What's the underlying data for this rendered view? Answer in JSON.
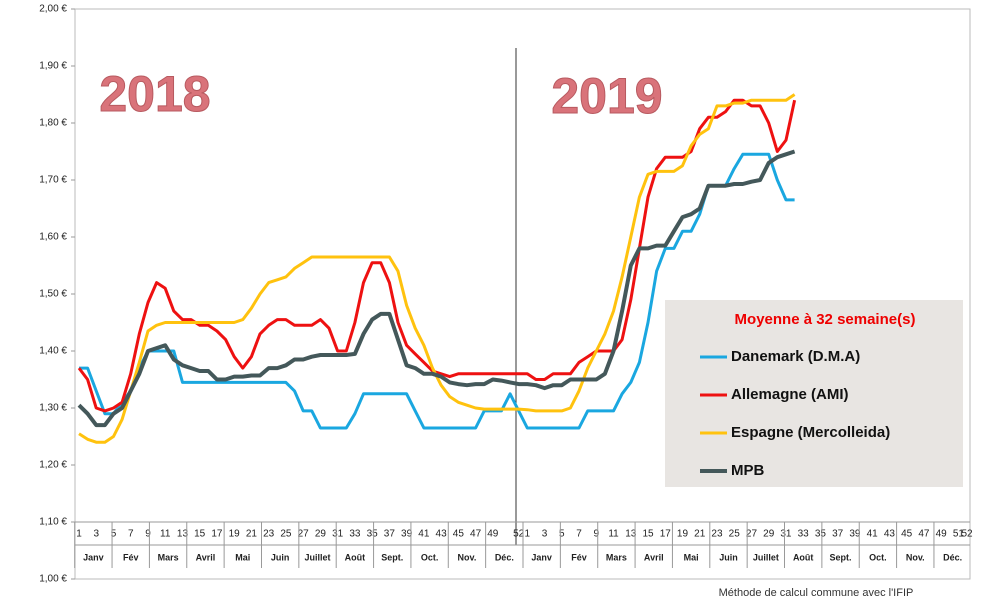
{
  "chart_data": {
    "type": "line",
    "legend_title": "Moyenne à  32 semaine(s)",
    "annotations": [
      "2018",
      "2019"
    ],
    "note": "Méthode de calcul commune avec l'IFIP",
    "legend": "right",
    "grid": false,
    "ylim": [
      1.0,
      2.0
    ],
    "yticks": [
      {
        "value": 1.0,
        "label": "1,00 €"
      },
      {
        "value": 1.1,
        "label": "1,10 €"
      },
      {
        "value": 1.2,
        "label": "1,20 €"
      },
      {
        "value": 1.3,
        "label": "1,30 €"
      },
      {
        "value": 1.4,
        "label": "1,40 €"
      },
      {
        "value": 1.5,
        "label": "1,50 €"
      },
      {
        "value": 1.6,
        "label": "1,60 €"
      },
      {
        "value": 1.7,
        "label": "1,70 €"
      },
      {
        "value": 1.8,
        "label": "1,80 €"
      },
      {
        "value": 1.9,
        "label": "1,90 €"
      },
      {
        "value": 2.0,
        "label": "2,00 €"
      }
    ],
    "months": [
      "Janv",
      "Fév",
      "Mars",
      "Avril",
      "Mai",
      "Juin",
      "Juillet",
      "Août",
      "Sept.",
      "Oct.",
      "Nov.",
      "Déc.",
      "Janv",
      "Fév",
      "Mars",
      "Avril",
      "Mai",
      "Juin",
      "Juillet",
      "Août",
      "Sept.",
      "Oct.",
      "Nov.",
      "Déc."
    ],
    "categories": [
      "1",
      null,
      "3",
      null,
      "5",
      null,
      "7",
      null,
      "9",
      null,
      "11",
      null,
      "13",
      null,
      "15",
      null,
      "17",
      null,
      "19",
      null,
      "21",
      null,
      "23",
      null,
      "25",
      null,
      "27",
      null,
      "29",
      null,
      "31",
      null,
      "33",
      null,
      "35",
      null,
      "37",
      null,
      "39",
      null,
      "41",
      null,
      "43",
      null,
      "45",
      null,
      "47",
      null,
      "49",
      null,
      null,
      "52",
      "1",
      null,
      "3",
      null,
      "5",
      null,
      "7",
      null,
      "9",
      null,
      "11",
      null,
      "13",
      null,
      "15",
      null,
      "17",
      null,
      "19",
      null,
      "21",
      null,
      "23",
      null,
      "25",
      null,
      "27",
      null,
      "29",
      null,
      "31",
      null,
      "33",
      null,
      "35",
      null,
      "37",
      null,
      "39",
      null,
      "41",
      null,
      "43",
      null,
      "45",
      null,
      "47",
      null,
      "49",
      null,
      "51",
      "52"
    ],
    "series": [
      {
        "name": "Danemark (D.M.A)",
        "color": "#1aa7e0",
        "values": [
          1.37,
          1.37,
          1.33,
          1.29,
          1.29,
          1.31,
          1.33,
          1.37,
          1.4,
          1.4,
          1.4,
          1.4,
          1.345,
          1.345,
          1.345,
          1.345,
          1.345,
          1.345,
          1.345,
          1.345,
          1.345,
          1.345,
          1.345,
          1.345,
          1.345,
          1.33,
          1.295,
          1.295,
          1.265,
          1.265,
          1.265,
          1.265,
          1.29,
          1.325,
          1.325,
          1.325,
          1.325,
          1.325,
          1.325,
          1.295,
          1.265,
          1.265,
          1.265,
          1.265,
          1.265,
          1.265,
          1.265,
          1.295,
          1.295,
          1.295,
          1.325,
          1.295,
          1.265,
          1.265,
          1.265,
          1.265,
          1.265,
          1.265,
          1.265,
          1.295,
          1.295,
          1.295,
          1.295,
          1.325,
          1.345,
          1.38,
          1.45,
          1.54,
          1.58,
          1.58,
          1.61,
          1.61,
          1.64,
          1.69,
          1.69,
          1.69,
          1.72,
          1.745,
          1.745,
          1.745,
          1.745,
          1.7,
          1.665,
          1.665,
          null,
          null,
          null,
          null,
          null,
          null,
          null,
          null,
          null,
          null,
          null,
          null,
          null,
          null,
          null,
          null,
          null,
          null,
          null,
          null
        ]
      },
      {
        "name": "Allemagne (AMI)",
        "color": "#ee1111",
        "values": [
          1.37,
          1.35,
          1.3,
          1.295,
          1.3,
          1.31,
          1.36,
          1.43,
          1.485,
          1.52,
          1.51,
          1.47,
          1.455,
          1.455,
          1.445,
          1.445,
          1.435,
          1.42,
          1.39,
          1.37,
          1.39,
          1.43,
          1.445,
          1.455,
          1.455,
          1.445,
          1.445,
          1.445,
          1.455,
          1.44,
          1.4,
          1.4,
          1.45,
          1.52,
          1.555,
          1.555,
          1.52,
          1.45,
          1.41,
          1.395,
          1.38,
          1.365,
          1.36,
          1.355,
          1.36,
          1.36,
          1.36,
          1.36,
          1.36,
          1.36,
          1.36,
          1.36,
          1.36,
          1.35,
          1.35,
          1.36,
          1.36,
          1.36,
          1.38,
          1.39,
          1.4,
          1.4,
          1.4,
          1.42,
          1.49,
          1.58,
          1.67,
          1.72,
          1.74,
          1.74,
          1.74,
          1.75,
          1.79,
          1.81,
          1.81,
          1.82,
          1.84,
          1.84,
          1.83,
          1.83,
          1.8,
          1.75,
          1.77,
          1.84,
          null,
          null,
          null,
          null,
          null,
          null,
          null,
          null,
          null,
          null,
          null,
          null,
          null,
          null,
          null,
          null,
          null,
          null,
          null,
          null
        ]
      },
      {
        "name": "Espagne (Mercolleida)",
        "color": "#ffc20e",
        "values": [
          1.255,
          1.245,
          1.24,
          1.24,
          1.25,
          1.28,
          1.33,
          1.38,
          1.435,
          1.445,
          1.45,
          1.45,
          1.45,
          1.45,
          1.45,
          1.45,
          1.45,
          1.45,
          1.45,
          1.455,
          1.475,
          1.5,
          1.52,
          1.525,
          1.53,
          1.545,
          1.555,
          1.565,
          1.565,
          1.565,
          1.565,
          1.565,
          1.565,
          1.565,
          1.565,
          1.565,
          1.565,
          1.54,
          1.48,
          1.44,
          1.41,
          1.37,
          1.34,
          1.32,
          1.31,
          1.305,
          1.3,
          1.298,
          1.298,
          1.298,
          1.298,
          1.298,
          1.297,
          1.295,
          1.295,
          1.295,
          1.295,
          1.3,
          1.33,
          1.37,
          1.4,
          1.43,
          1.47,
          1.53,
          1.6,
          1.67,
          1.71,
          1.715,
          1.715,
          1.715,
          1.725,
          1.76,
          1.78,
          1.79,
          1.83,
          1.83,
          1.835,
          1.835,
          1.84,
          1.84,
          1.84,
          1.84,
          1.84,
          1.85,
          null,
          null,
          null,
          null,
          null,
          null,
          null,
          null,
          null,
          null,
          null,
          null,
          null,
          null,
          null,
          null,
          null,
          null,
          null,
          null
        ]
      },
      {
        "name": "MPB",
        "color": "#44585a",
        "values": [
          1.305,
          1.29,
          1.27,
          1.27,
          1.29,
          1.3,
          1.33,
          1.36,
          1.4,
          1.405,
          1.41,
          1.385,
          1.375,
          1.37,
          1.365,
          1.365,
          1.35,
          1.35,
          1.355,
          1.355,
          1.357,
          1.357,
          1.37,
          1.37,
          1.375,
          1.385,
          1.385,
          1.39,
          1.393,
          1.393,
          1.393,
          1.393,
          1.395,
          1.43,
          1.455,
          1.465,
          1.465,
          1.42,
          1.375,
          1.37,
          1.36,
          1.36,
          1.355,
          1.345,
          1.342,
          1.34,
          1.342,
          1.342,
          1.35,
          1.348,
          1.345,
          1.342,
          1.342,
          1.34,
          1.335,
          1.34,
          1.34,
          1.35,
          1.35,
          1.35,
          1.35,
          1.36,
          1.4,
          1.47,
          1.55,
          1.58,
          1.58,
          1.585,
          1.585,
          1.61,
          1.635,
          1.64,
          1.65,
          1.69,
          1.69,
          1.69,
          1.693,
          1.693,
          1.697,
          1.7,
          1.73,
          1.74,
          1.745,
          1.75,
          null,
          null,
          null,
          null,
          null,
          null,
          null,
          null,
          null,
          null,
          null,
          null,
          null,
          null,
          null,
          null,
          null,
          null,
          null,
          null
        ]
      }
    ]
  }
}
